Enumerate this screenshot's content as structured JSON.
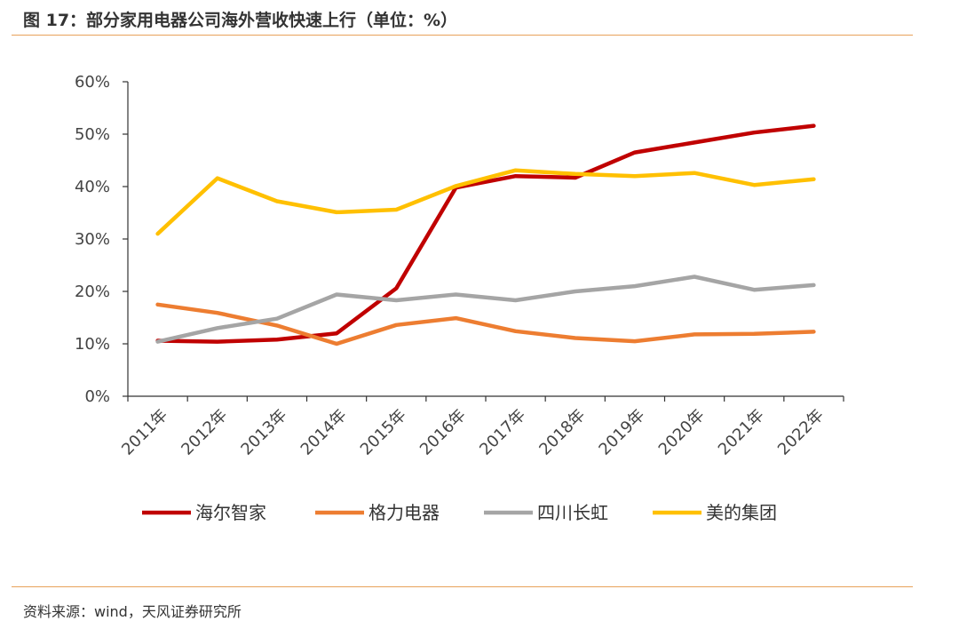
{
  "title": "图 17：部分家用电器公司海外营收快速上行（单位：%）",
  "source": "资料来源：wind，天风证券研究所",
  "chart_data": {
    "type": "line",
    "title": "",
    "xlabel": "",
    "ylabel": "",
    "categories": [
      "2011年",
      "2012年",
      "2013年",
      "2014年",
      "2015年",
      "2016年",
      "2017年",
      "2018年",
      "2019年",
      "2020年",
      "2021年",
      "2022年"
    ],
    "ylim": [
      0,
      60
    ],
    "yticks": [
      "0%",
      "10%",
      "20%",
      "30%",
      "40%",
      "50%",
      "60%"
    ],
    "ytick_values": [
      0,
      10,
      20,
      30,
      40,
      50,
      60
    ],
    "grid": false,
    "legend_position": "bottom",
    "series": [
      {
        "name": "海尔智家",
        "color": "#c00000",
        "values": [
          10.6,
          10.4,
          10.8,
          12.0,
          20.6,
          39.8,
          42.0,
          41.7,
          46.5,
          48.4,
          50.3,
          51.6
        ]
      },
      {
        "name": "格力电器",
        "color": "#ed7d31",
        "values": [
          17.5,
          15.9,
          13.5,
          10.0,
          13.6,
          14.9,
          12.4,
          11.1,
          10.5,
          11.8,
          11.9,
          12.3
        ]
      },
      {
        "name": "四川长虹",
        "color": "#a5a5a5",
        "values": [
          10.4,
          13.0,
          14.8,
          19.4,
          18.3,
          19.4,
          18.3,
          20.0,
          21.0,
          22.8,
          20.3,
          21.2
        ]
      },
      {
        "name": "美的集团",
        "color": "#ffc000",
        "values": [
          31.0,
          41.6,
          37.2,
          35.1,
          35.6,
          40.1,
          43.1,
          42.4,
          42.0,
          42.6,
          40.3,
          41.4
        ]
      }
    ]
  }
}
